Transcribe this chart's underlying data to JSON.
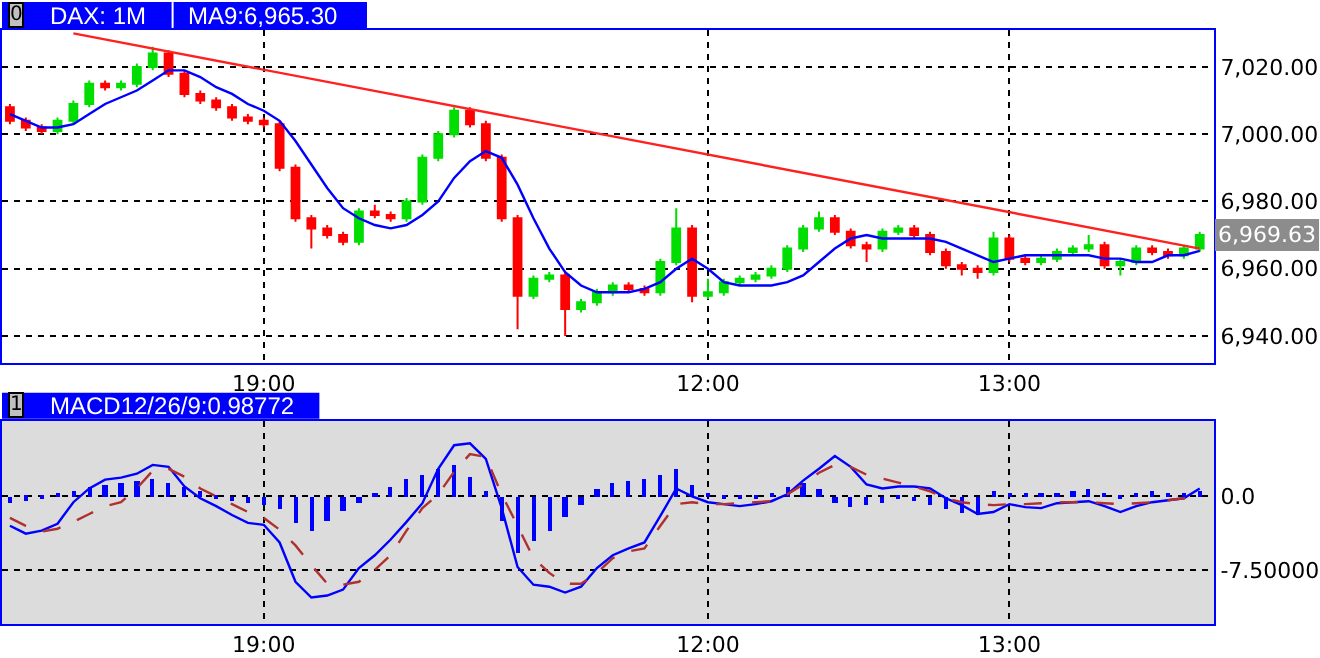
{
  "chart_data": [
    {
      "type": "candlestick",
      "title": "DAX: 1M",
      "subtitle": "MA9:6,965.30",
      "annotations": [
        "0",
        "6,969.63"
      ],
      "categories": [
        null,
        null,
        null,
        null,
        null,
        null,
        null,
        null,
        null,
        null,
        null,
        null,
        null,
        null,
        null,
        null,
        "19:00",
        null,
        null,
        null,
        null,
        null,
        null,
        null,
        null,
        null,
        null,
        null,
        null,
        null,
        null,
        null,
        null,
        null,
        null,
        null,
        null,
        null,
        null,
        null,
        null,
        null,
        null,
        null,
        "12:00",
        null,
        null,
        null,
        null,
        null,
        null,
        null,
        null,
        null,
        null,
        null,
        null,
        null,
        null,
        null,
        null,
        null,
        null,
        "13:00",
        null,
        null,
        null,
        null,
        null,
        null,
        null,
        null,
        null,
        null,
        null,
        null
      ],
      "ohlc": [
        [
          7008,
          7009,
          7003,
          7004
        ],
        [
          7004,
          7005,
          7001,
          7002
        ],
        [
          7002,
          7003,
          7000,
          7001
        ],
        [
          7001,
          7005,
          7000,
          7004
        ],
        [
          7004,
          7010,
          7003,
          7009
        ],
        [
          7009,
          7016,
          7008,
          7015
        ],
        [
          7015,
          7016,
          7013,
          7014
        ],
        [
          7014,
          7016,
          7013,
          7015
        ],
        [
          7015,
          7021,
          7014,
          7020
        ],
        [
          7020,
          7026,
          7019,
          7024
        ],
        [
          7024,
          7025,
          7017,
          7018
        ],
        [
          7018,
          7019,
          7011,
          7012
        ],
        [
          7012,
          7013,
          7009,
          7010
        ],
        [
          7010,
          7011,
          7007,
          7008
        ],
        [
          7008,
          7009,
          7004,
          7005
        ],
        [
          7005,
          7006,
          7003,
          7004
        ],
        [
          7004,
          7005,
          7002,
          7003
        ],
        [
          7003,
          7004,
          6989,
          6990
        ],
        [
          6990,
          6991,
          6974,
          6975
        ],
        [
          6975,
          6976,
          6966,
          6972
        ],
        [
          6972,
          6973,
          6969,
          6970
        ],
        [
          6970,
          6971,
          6967,
          6968
        ],
        [
          6968,
          6978,
          6967,
          6977
        ],
        [
          6977,
          6979,
          6975,
          6976
        ],
        [
          6976,
          6977,
          6974,
          6975
        ],
        [
          6975,
          6981,
          6974,
          6980
        ],
        [
          6980,
          6994,
          6979,
          6993
        ],
        [
          6993,
          7001,
          6992,
          7000
        ],
        [
          7000,
          7008,
          6999,
          7007
        ],
        [
          7007,
          7008,
          7002,
          7003
        ],
        [
          7003,
          7004,
          6992,
          6993
        ],
        [
          6993,
          6994,
          6974,
          6975
        ],
        [
          6975,
          6976,
          6942,
          6952
        ],
        [
          6952,
          6958,
          6951,
          6957
        ],
        [
          6957,
          6959,
          6956,
          6958
        ],
        [
          6958,
          6959,
          6940,
          6948
        ],
        [
          6948,
          6951,
          6947,
          6950
        ],
        [
          6950,
          6954,
          6949,
          6953
        ],
        [
          6953,
          6956,
          6952,
          6955
        ],
        [
          6955,
          6956,
          6953,
          6954
        ],
        [
          6954,
          6955,
          6952,
          6953
        ],
        [
          6953,
          6963,
          6952,
          6962
        ],
        [
          6962,
          6978,
          6961,
          6972
        ],
        [
          6972,
          6973,
          6950,
          6952
        ],
        [
          6952,
          6957,
          6951,
          6953
        ],
        [
          6953,
          6957,
          6952,
          6956
        ],
        [
          6956,
          6958,
          6955,
          6957
        ],
        [
          6957,
          6959,
          6956,
          6958
        ],
        [
          6958,
          6961,
          6957,
          6960
        ],
        [
          6960,
          6967,
          6959,
          6966
        ],
        [
          6966,
          6973,
          6965,
          6972
        ],
        [
          6972,
          6977,
          6971,
          6975
        ],
        [
          6975,
          6976,
          6970,
          6971
        ],
        [
          6971,
          6972,
          6966,
          6967
        ],
        [
          6967,
          6968,
          6962,
          6966
        ],
        [
          6966,
          6972,
          6965,
          6971
        ],
        [
          6971,
          6973,
          6970,
          6972
        ],
        [
          6972,
          6973,
          6969,
          6970
        ],
        [
          6970,
          6971,
          6964,
          6965
        ],
        [
          6965,
          6966,
          6960,
          6961
        ],
        [
          6961,
          6962,
          6958,
          6960
        ],
        [
          6960,
          6961,
          6957,
          6959
        ],
        [
          6959,
          6971,
          6958,
          6969
        ],
        [
          6969,
          6970,
          6962,
          6963
        ],
        [
          6963,
          6964,
          6961,
          6962
        ],
        [
          6962,
          6964,
          6961,
          6963
        ],
        [
          6963,
          6966,
          6962,
          6965
        ],
        [
          6965,
          6967,
          6964,
          6966
        ],
        [
          6966,
          6970,
          6965,
          6967
        ],
        [
          6967,
          6968,
          6960,
          6961
        ],
        [
          6961,
          6963,
          6958,
          6962
        ],
        [
          6962,
          6967,
          6961,
          6966
        ],
        [
          6966,
          6967,
          6964,
          6965
        ],
        [
          6965,
          6966,
          6963,
          6964
        ],
        [
          6964,
          6967,
          6963,
          6966
        ],
        [
          6966,
          6971,
          6965,
          6970
        ]
      ],
      "colors": [
        "#ff0000",
        "#ff0000",
        "#ff0000",
        "#00dd00",
        "#00dd00",
        "#00dd00",
        "#ff0000",
        "#00dd00",
        "#00dd00",
        "#00dd00",
        "#ff0000",
        "#ff0000",
        "#ff0000",
        "#ff0000",
        "#ff0000",
        "#ff0000",
        "#ff0000",
        "#ff0000",
        "#ff0000",
        "#ff0000",
        "#ff0000",
        "#ff0000",
        "#00dd00",
        "#ff0000",
        "#ff0000",
        "#00dd00",
        "#00dd00",
        "#00dd00",
        "#00dd00",
        "#ff0000",
        "#ff0000",
        "#ff0000",
        "#ff0000",
        "#00dd00",
        "#00dd00",
        "#ff0000",
        "#00dd00",
        "#00dd00",
        "#00dd00",
        "#ff0000",
        "#ff0000",
        "#00dd00",
        "#00dd00",
        "#ff0000",
        "#00dd00",
        "#00dd00",
        "#00dd00",
        "#00dd00",
        "#00dd00",
        "#00dd00",
        "#00dd00",
        "#00dd00",
        "#ff0000",
        "#ff0000",
        "#ff0000",
        "#00dd00",
        "#00dd00",
        "#ff0000",
        "#ff0000",
        "#ff0000",
        "#ff0000",
        "#ff0000",
        "#00dd00",
        "#ff0000",
        "#ff0000",
        "#00dd00",
        "#00dd00",
        "#00dd00",
        "#00dd00",
        "#ff0000",
        "#00dd00",
        "#00dd00",
        "#ff0000",
        "#ff0000",
        "#00dd00",
        "#00dd00"
      ],
      "series": [
        {
          "type": "line",
          "color": "#0000ff",
          "values": [
            7006,
            7004,
            7002,
            7002,
            7003,
            7006,
            7009,
            7011,
            7013,
            7016,
            7019,
            7019,
            7017,
            7014,
            7012,
            7009,
            7007,
            7004,
            6998,
            6991,
            6984,
            6978,
            6975,
            6973,
            6972,
            6973,
            6976,
            6980,
            6987,
            6992,
            6995,
            6993,
            6985,
            6975,
            6966,
            6959,
            6955,
            6953,
            6953,
            6953,
            6954,
            6956,
            6960,
            6963,
            6960,
            6956,
            6955,
            6955,
            6955,
            6956,
            6958,
            6962,
            6966,
            6969,
            6970,
            6969,
            6969,
            6969,
            6969,
            6968,
            6966,
            6964,
            6962,
            6963,
            6964,
            6964,
            6964,
            6964,
            6964,
            6963,
            6963,
            6962,
            6962,
            6964,
            6964,
            6965.3
          ]
        },
        {
          "type": "line",
          "color": "#ff2020",
          "values": [
            null,
            null,
            null,
            null,
            7030,
            null,
            null,
            null,
            null,
            null,
            null,
            null,
            null,
            null,
            null,
            null,
            null,
            null,
            null,
            null,
            null,
            null,
            null,
            null,
            null,
            null,
            null,
            null,
            null,
            null,
            null,
            null,
            null,
            null,
            null,
            null,
            null,
            null,
            null,
            null,
            null,
            null,
            null,
            null,
            null,
            null,
            null,
            null,
            null,
            null,
            null,
            null,
            null,
            null,
            null,
            null,
            null,
            null,
            null,
            null,
            null,
            null,
            null,
            null,
            null,
            null,
            null,
            null,
            null,
            null,
            null,
            null,
            null,
            null,
            null,
            6966
          ]
        }
      ],
      "ylim": [
        6932,
        7031
      ],
      "yticks": [
        {
          "value": 6940,
          "label": "6,940.00"
        },
        {
          "value": 6960,
          "label": "6,960.00"
        },
        {
          "value": 6980,
          "label": "6,980.00"
        },
        {
          "value": 7000,
          "label": "7,000.00"
        },
        {
          "value": 7020,
          "label": "7,020.00"
        }
      ],
      "grid": true,
      "line_style": "solid",
      "marker": "none"
    },
    {
      "type": "bar",
      "title": "MACD12/26/9:0.98772",
      "annotations": [
        "1"
      ],
      "categories": [
        null,
        null,
        null,
        null,
        null,
        null,
        null,
        null,
        null,
        null,
        null,
        null,
        null,
        null,
        null,
        null,
        "19:00",
        null,
        null,
        null,
        null,
        null,
        null,
        null,
        null,
        null,
        null,
        null,
        null,
        null,
        null,
        null,
        null,
        null,
        null,
        null,
        null,
        null,
        null,
        null,
        null,
        null,
        null,
        null,
        "12:00",
        null,
        null,
        null,
        null,
        null,
        null,
        null,
        null,
        null,
        null,
        null,
        null,
        null,
        null,
        null,
        null,
        null,
        null,
        "13:00",
        null,
        null,
        null,
        null,
        null,
        null,
        null,
        null,
        null,
        null,
        null,
        null
      ],
      "series": [
        {
          "type": "bar",
          "color": "#0000ff",
          "values": [
            -0.6,
            -0.4,
            -0.3,
            0.2,
            0.5,
            0.9,
            1.2,
            1.4,
            1.6,
            1.8,
            1.3,
            1.0,
            0.6,
            -0.2,
            -0.5,
            -0.7,
            -0.8,
            -1.2,
            -2.6,
            -3.6,
            -2.5,
            -1.5,
            -0.6,
            0.2,
            1.0,
            1.8,
            2.3,
            2.9,
            3.2,
            2.0,
            0.6,
            -2.5,
            -5.7,
            -4.5,
            -3.5,
            -2.0,
            -0.8,
            0.8,
            1.3,
            1.6,
            1.8,
            2.2,
            2.8,
            1.2,
            0.2,
            -0.2,
            -0.3,
            -0.2,
            0.4,
            0.9,
            1.3,
            0.8,
            -0.6,
            -1.0,
            -0.9,
            -0.6,
            -0.2,
            -0.5,
            -0.9,
            -1.3,
            -1.6,
            -1.8,
            0.5,
            0.3,
            0.2,
            0.3,
            0.4,
            0.6,
            0.7,
            0.3,
            -0.3,
            0.4,
            0.5,
            0.4,
            0.4,
            0.6
          ]
        },
        {
          "type": "line",
          "color": "#0000ff",
          "line_style": "solid",
          "values": [
            -3.0,
            -3.8,
            -3.5,
            -2.8,
            -0.6,
            0.8,
            1.7,
            1.9,
            2.3,
            3.2,
            3.0,
            1.0,
            -0.2,
            -1.0,
            -1.9,
            -2.7,
            -2.9,
            -4.7,
            -8.7,
            -10.3,
            -10.1,
            -9.5,
            -7.3,
            -6.0,
            -4.4,
            -2.6,
            -0.7,
            2.8,
            5.2,
            5.4,
            3.8,
            -1.2,
            -7.2,
            -9.0,
            -9.2,
            -9.8,
            -9.2,
            -7.3,
            -6.0,
            -5.3,
            -4.7,
            -2.0,
            0.8,
            0.0,
            -0.6,
            -0.8,
            -1.0,
            -0.8,
            -0.5,
            0.2,
            1.6,
            2.8,
            4.1,
            3.0,
            1.2,
            0.8,
            1.0,
            1.0,
            0.8,
            -0.2,
            -0.9,
            -1.8,
            -1.6,
            -0.8,
            -1.1,
            -1.2,
            -0.7,
            -0.6,
            -0.5,
            -1.0,
            -1.6,
            -1.0,
            -0.6,
            -0.4,
            -0.2,
            0.8
          ]
        },
        {
          "type": "line",
          "color": "#b03030",
          "line_style": "dashed",
          "values": [
            -2.2,
            -3.0,
            -3.6,
            -3.3,
            -2.6,
            -1.8,
            -1.0,
            -0.6,
            0.8,
            2.6,
            2.8,
            2.0,
            0.8,
            0.0,
            -0.8,
            -1.6,
            -2.2,
            -3.4,
            -5.0,
            -7.0,
            -8.9,
            -9.0,
            -8.7,
            -7.5,
            -6.0,
            -3.5,
            -1.2,
            0.2,
            2.5,
            4.3,
            4.0,
            0.2,
            -3.0,
            -6.3,
            -7.8,
            -8.9,
            -8.9,
            -7.8,
            -6.3,
            -5.6,
            -5.3,
            -3.0,
            -0.8,
            -0.6,
            -0.8,
            -0.8,
            -0.7,
            -0.6,
            -0.5,
            0.2,
            1.2,
            2.4,
            3.2,
            3.0,
            2.2,
            1.8,
            1.4,
            1.0,
            0.5,
            -0.2,
            -0.6,
            -0.8,
            -0.9,
            -0.8,
            -0.8,
            -0.7,
            -0.6,
            -0.6,
            -0.6,
            -0.7,
            -0.8,
            -0.7,
            -0.6,
            -0.4,
            -0.2,
            0.2
          ]
        }
      ],
      "ylim": [
        -13,
        7.7
      ],
      "yticks": [
        {
          "value": 0,
          "label": "0.0"
        },
        {
          "value": -7.5,
          "label": "-7.50000"
        }
      ],
      "grid": true,
      "marker": "none"
    }
  ]
}
